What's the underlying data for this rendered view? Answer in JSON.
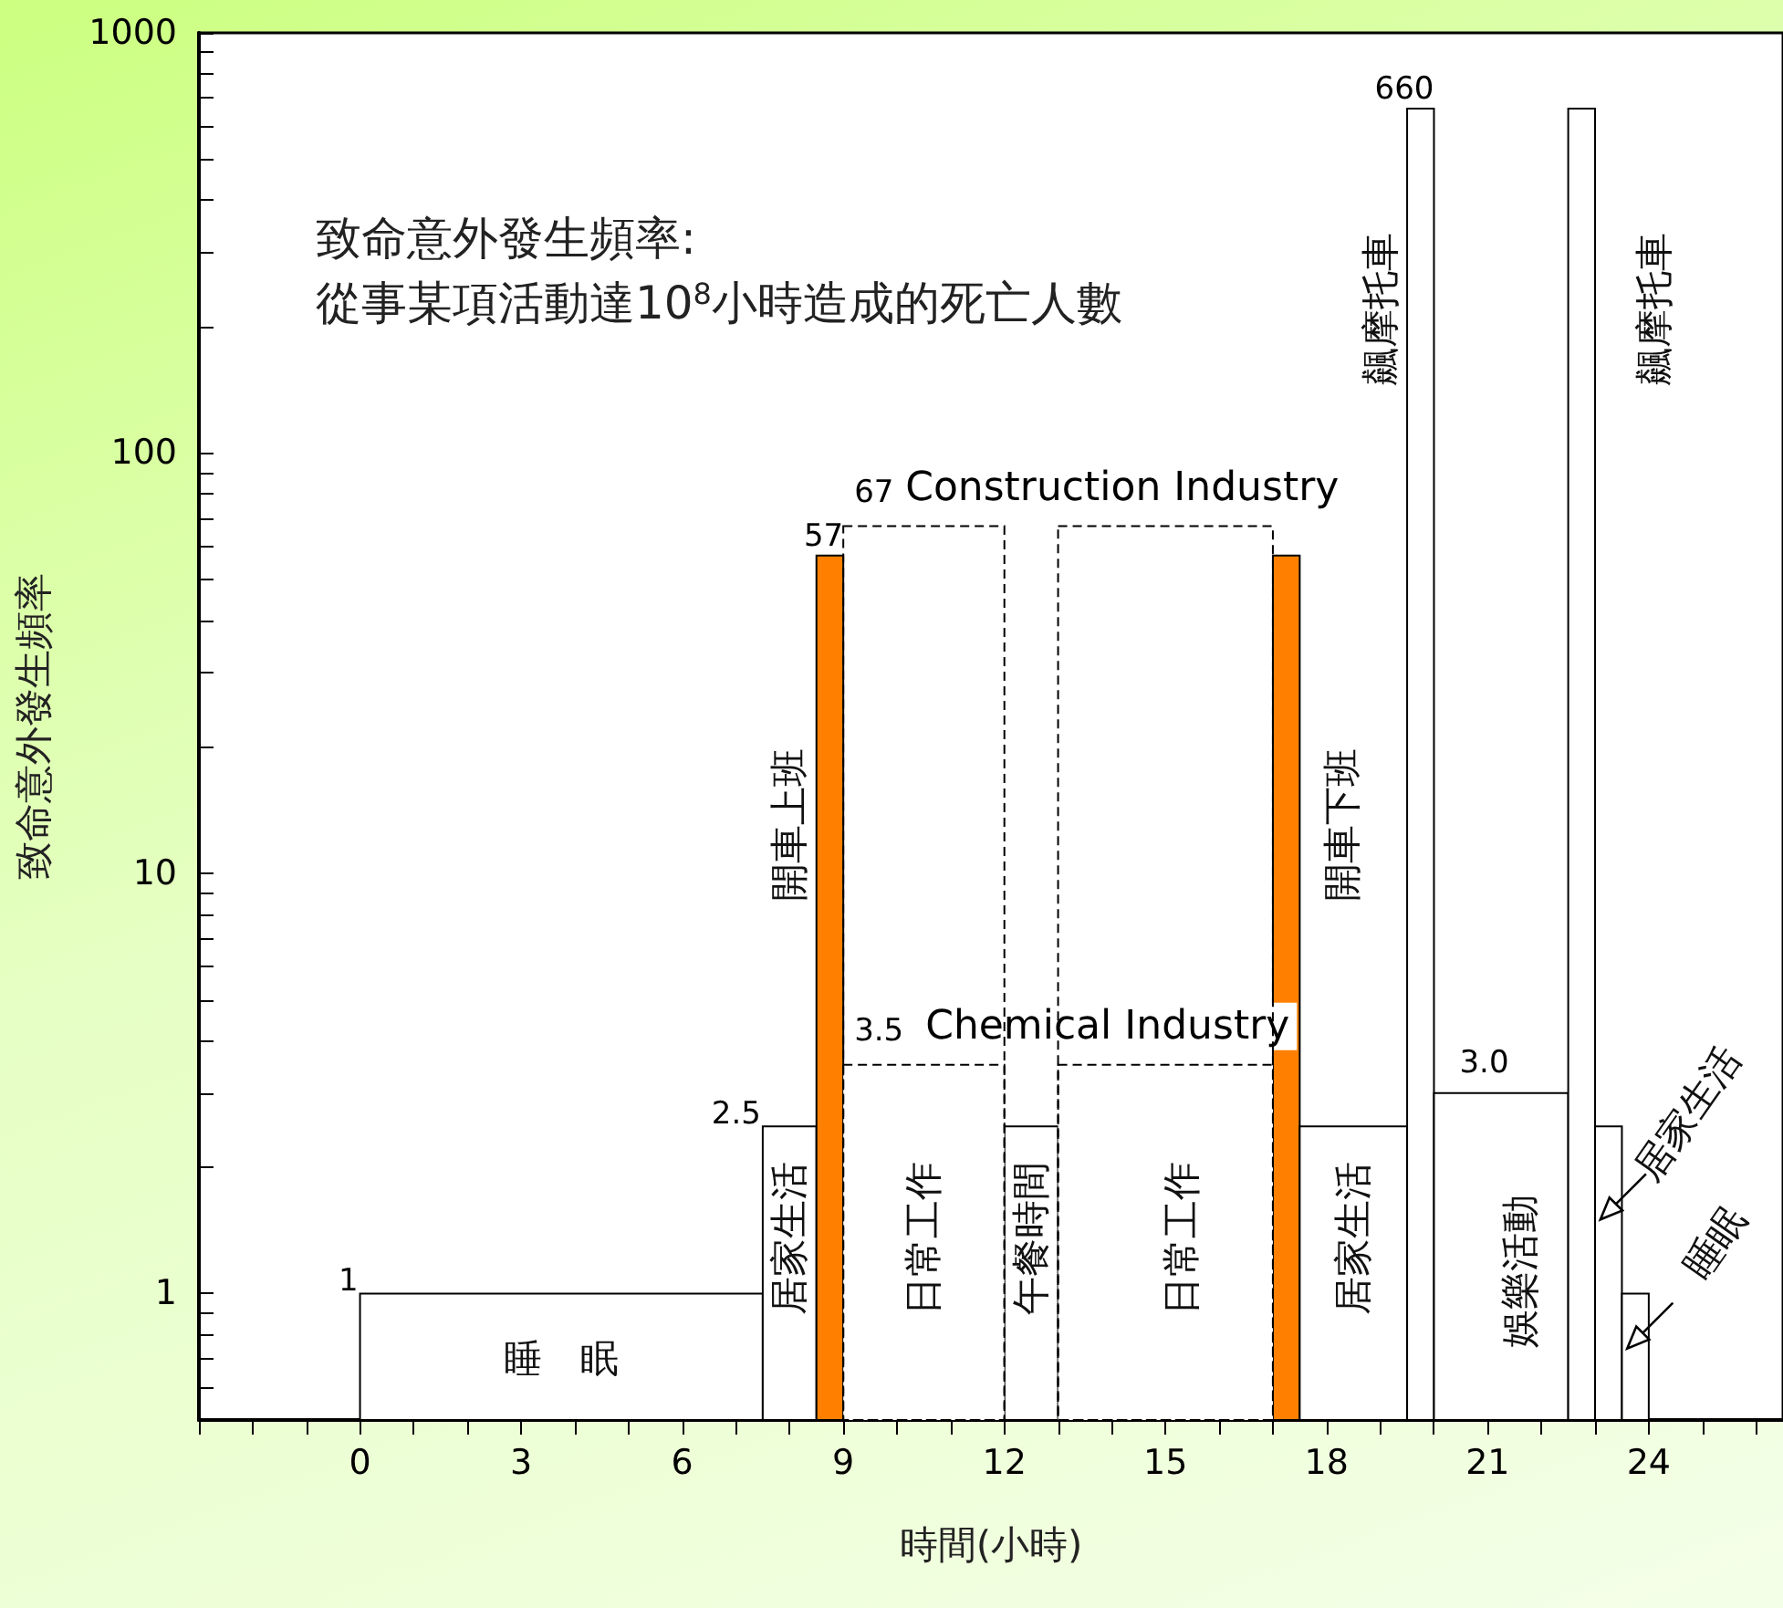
{
  "chart_data": {
    "type": "histogram",
    "title": "致命意外發生頻率:",
    "subtitle": "從事某項活動達10$^{8}$小時造成的死亡人數",
    "xlabel": "時間(小時)",
    "ylabel": "致命意外發生頻率",
    "log": "y",
    "grid": false,
    "xlim": [
      -3,
      26.5
    ],
    "ylim": [
      0.5,
      1000
    ],
    "xticks": [
      {
        "value": -3,
        "label": null
      },
      {
        "value": -2,
        "label": null
      },
      {
        "value": -1,
        "label": null
      },
      0,
      {
        "value": 1,
        "label": null
      },
      {
        "value": 2,
        "label": null
      },
      3,
      {
        "value": 4,
        "label": null
      },
      {
        "value": 5,
        "label": null
      },
      6,
      {
        "value": 7,
        "label": null
      },
      {
        "value": 8,
        "label": null
      },
      9,
      {
        "value": 10,
        "label": null
      },
      {
        "value": 11,
        "label": null
      },
      12,
      {
        "value": 13,
        "label": null
      },
      {
        "value": 14,
        "label": null
      },
      15,
      {
        "value": 16,
        "label": null
      },
      {
        "value": 17,
        "label": null
      },
      18,
      {
        "value": 19,
        "label": null
      },
      {
        "value": 20,
        "label": null
      },
      21,
      {
        "value": 22,
        "label": null
      },
      {
        "value": 23,
        "label": null
      },
      24,
      {
        "value": 25,
        "label": null
      },
      {
        "value": 26,
        "label": null
      }
    ],
    "yticks": [
      {
        "value": 0.6,
        "label": null
      },
      {
        "value": 0.7,
        "label": null
      },
      {
        "value": 0.8,
        "label": null
      },
      {
        "value": 0.9,
        "label": null
      },
      1,
      {
        "value": 2,
        "label": null
      },
      {
        "value": 3,
        "label": null
      },
      {
        "value": 4,
        "label": null
      },
      {
        "value": 5,
        "label": null
      },
      {
        "value": 6,
        "label": null
      },
      {
        "value": 7,
        "label": null
      },
      {
        "value": 8,
        "label": null
      },
      {
        "value": 9,
        "label": null
      },
      10,
      {
        "value": 20,
        "label": null
      },
      {
        "value": 30,
        "label": null
      },
      {
        "value": 40,
        "label": null
      },
      {
        "value": 50,
        "label": null
      },
      {
        "value": 60,
        "label": null
      },
      {
        "value": 70,
        "label": null
      },
      {
        "value": 80,
        "label": null
      },
      {
        "value": 90,
        "label": null
      },
      100,
      {
        "value": 200,
        "label": null
      },
      {
        "value": 300,
        "label": null
      },
      {
        "value": 400,
        "label": null
      },
      {
        "value": 500,
        "label": null
      },
      {
        "value": 600,
        "label": null
      },
      {
        "value": 700,
        "label": null
      },
      {
        "value": 800,
        "label": null
      },
      {
        "value": 900,
        "label": null
      },
      1000
    ],
    "bins": [
      0,
      7.5,
      8.5,
      9,
      12,
      13,
      17,
      17.5,
      19.5,
      20,
      22.5,
      23,
      23.5,
      24
    ],
    "series": [
      {
        "values": [
          1,
          2.5,
          57,
          null,
          2.5,
          null,
          57,
          2.5,
          660,
          3.0,
          660,
          2.5,
          1
        ],
        "colors": [
          "#ffffff",
          "#ffffff",
          "#ff8000",
          null,
          "#ffffff",
          null,
          "#ff8000",
          "#ffffff",
          "#ffffff",
          "#ffffff",
          "#ffffff",
          "#ffffff",
          "#ffffff"
        ],
        "value_labels": [
          "1",
          "2.5",
          "57",
          null,
          null,
          null,
          null,
          null,
          "660",
          "3.0",
          null,
          null,
          null
        ],
        "line_style": "solid"
      },
      {
        "name": "Chemical Industry",
        "values": [
          null,
          null,
          null,
          3.5,
          null,
          3.5,
          null,
          null,
          null,
          null,
          null,
          null,
          null
        ],
        "color": "#ffffff",
        "value_labels": [
          null,
          null,
          null,
          "3.5",
          null,
          null,
          null,
          null,
          null,
          null,
          null,
          null,
          null
        ],
        "line_style": "dashed"
      },
      {
        "name": "Construction Industry",
        "values": [
          null,
          null,
          null,
          67,
          null,
          67,
          null,
          null,
          null,
          null,
          null,
          null,
          null
        ],
        "value_labels": [
          null,
          null,
          null,
          "67",
          null,
          null,
          null,
          null,
          null,
          null,
          null,
          null,
          null
        ],
        "line_style": "dashed"
      }
    ],
    "annotations": [
      "睡　眠",
      "居家生活",
      "開車上班",
      "日常工作",
      "午餐時間",
      "日常工作",
      "開車下班",
      "居家生活",
      "飆摩托車",
      "娛樂活動",
      "飆摩托車",
      "居家生活",
      "睡眠"
    ]
  }
}
